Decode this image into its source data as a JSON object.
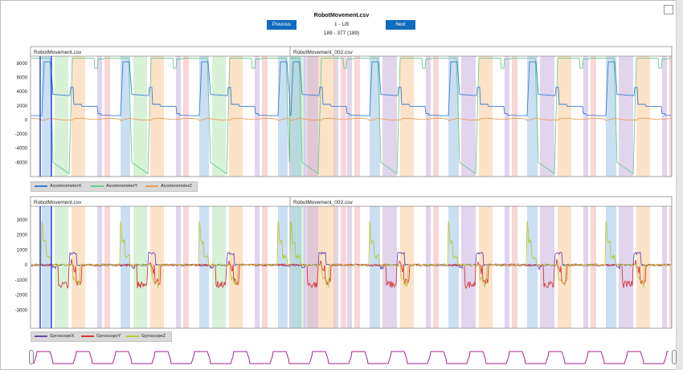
{
  "header": {
    "title": "RobotMovement.csv",
    "label": "1 - Lift",
    "range": "189 - 377 (189)",
    "prev_label": "Previous",
    "next_label": "Next"
  },
  "colors": {
    "accent": "#0f6cbd",
    "band_blue": "#9fc5e8",
    "band_green": "#b6e7b6",
    "band_orange": "#f9cb9c",
    "band_purple": "#c9b3df",
    "band_red": "#f4b6b6",
    "accelX": "#3d7fd1",
    "accelY": "#6ccb8f",
    "accelZ": "#ee9c55",
    "gyroX": "#6a4ba8",
    "gyroY": "#d9343a",
    "gyroZ": "#b9c93a",
    "preview": "#a0258e",
    "selection": "#1f3bdf"
  },
  "panels": [
    {
      "name": "accelerometer",
      "file_left": "RobotMovement.csv",
      "file_right": "RobotMovement_002.csv"
    },
    {
      "name": "gyroscope",
      "file_left": "RobotMovement.csv",
      "file_right": "RobotMovement_002.csv"
    }
  ],
  "chart_data": [
    {
      "type": "line",
      "title": "",
      "yticks": [
        8000,
        6000,
        4000,
        2000,
        0,
        -2000,
        -4000,
        -6000
      ],
      "ylim": [
        -8000,
        9000
      ],
      "series": [
        {
          "name": "AccelerometerX"
        },
        {
          "name": "AccelerometerY"
        },
        {
          "name": "AccelerometerZ"
        }
      ]
    },
    {
      "type": "line",
      "title": "",
      "yticks": [
        3000,
        2000,
        1000,
        0,
        -1000,
        -2000,
        -3000
      ],
      "ylim": [
        -4200,
        3900
      ],
      "series": [
        {
          "name": "GyroscopeX"
        },
        {
          "name": "GyroscopeY"
        },
        {
          "name": "GyroscopeZ"
        }
      ]
    }
  ]
}
